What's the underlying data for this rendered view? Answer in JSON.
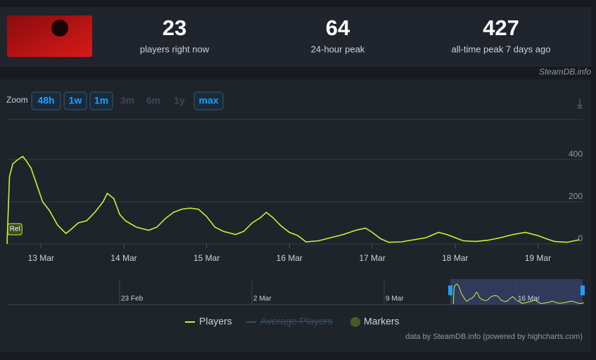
{
  "header": {
    "stats": [
      {
        "value": 23,
        "label": "players right now"
      },
      {
        "value": 64,
        "label": "24-hour peak"
      },
      {
        "value": 427,
        "label": "all-time peak 7 days ago"
      }
    ],
    "credit": "SteamDB.info"
  },
  "zoom": {
    "label": "Zoom",
    "buttons": [
      {
        "label": "48h",
        "enabled": true
      },
      {
        "label": "1w",
        "enabled": true
      },
      {
        "label": "1m",
        "enabled": true
      },
      {
        "label": "3m",
        "enabled": false
      },
      {
        "label": "6m",
        "enabled": false
      },
      {
        "label": "1y",
        "enabled": false
      },
      {
        "label": "max",
        "enabled": true
      }
    ]
  },
  "chart_data": {
    "type": "line",
    "x": [
      12.59,
      12.62,
      12.66,
      12.72,
      12.78,
      12.82,
      12.88,
      12.95,
      13.02,
      13.1,
      13.2,
      13.3,
      13.35,
      13.45,
      13.55,
      13.65,
      13.75,
      13.8,
      13.88,
      13.95,
      14.02,
      14.15,
      14.3,
      14.4,
      14.5,
      14.6,
      14.7,
      14.8,
      14.9,
      15.0,
      15.1,
      15.2,
      15.35,
      15.45,
      15.55,
      15.65,
      15.72,
      15.8,
      15.9,
      16.0,
      16.1,
      16.2,
      16.35,
      16.5,
      16.65,
      16.8,
      16.92,
      17.0,
      17.1,
      17.2,
      17.35,
      17.5,
      17.65,
      17.8,
      17.9,
      18.0,
      18.1,
      18.25,
      18.4,
      18.55,
      18.7,
      18.85,
      19.0,
      19.1,
      19.2,
      19.35,
      19.5
    ],
    "series": [
      {
        "name": "Players",
        "color": "#c6f432",
        "values": [
          0,
          320,
          380,
          400,
          415,
          395,
          360,
          280,
          200,
          160,
          90,
          50,
          65,
          100,
          110,
          150,
          200,
          240,
          215,
          140,
          110,
          80,
          65,
          80,
          120,
          150,
          165,
          170,
          165,
          130,
          80,
          60,
          45,
          60,
          100,
          125,
          150,
          125,
          85,
          55,
          40,
          10,
          15,
          30,
          45,
          65,
          75,
          55,
          25,
          8,
          10,
          20,
          30,
          55,
          45,
          30,
          15,
          12,
          18,
          30,
          45,
          55,
          40,
          25,
          12,
          8,
          20
        ]
      },
      {
        "name": "Average Players",
        "color": "#3d4b5c",
        "visible": false
      }
    ],
    "markers": [
      {
        "x": 12.6,
        "label": "Rel"
      }
    ],
    "markers_legend": "Markers",
    "xlim": [
      12.59,
      19.54
    ],
    "xticks": [
      {
        "value": 13,
        "label": "13 Mar"
      },
      {
        "value": 14,
        "label": "14 Mar"
      },
      {
        "value": 15,
        "label": "15 Mar"
      },
      {
        "value": 16,
        "label": "16 Mar"
      },
      {
        "value": 17,
        "label": "17 Mar"
      },
      {
        "value": 18,
        "label": "18 Mar"
      },
      {
        "value": 19,
        "label": "19 Mar"
      }
    ],
    "ylim": [
      0,
      590
    ],
    "yticks": [
      0,
      200,
      400
    ],
    "grid": true,
    "navigator": {
      "labels": [
        "23 Feb",
        "2 Mar",
        "9 Mar",
        "16 Mar"
      ]
    },
    "credit": "data by SteamDB.info (powered by highcharts.com)"
  }
}
